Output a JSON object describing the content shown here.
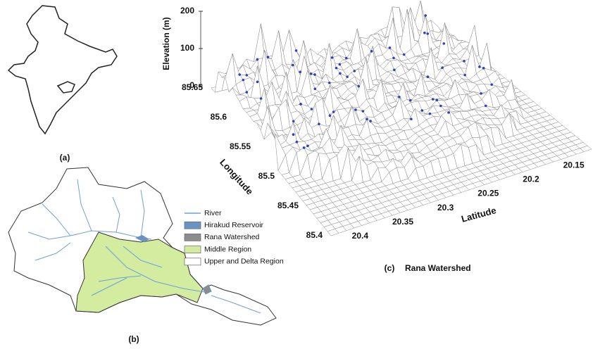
{
  "panels": {
    "a": {
      "label": "(a)"
    },
    "b": {
      "label": "(b)",
      "legend": [
        {
          "name": "River",
          "color": "#6f9fd8"
        },
        {
          "name": "Hirakud Reservoir",
          "color": "#6a93c4"
        },
        {
          "name": "Rana Watershed",
          "color": "#8c8c8c"
        },
        {
          "name": "Middle Region",
          "color": "#d3eca0"
        },
        {
          "name": "Upper and Delta Region",
          "color": "#ffffff"
        }
      ]
    },
    "c": {
      "label": "(c)",
      "title": "Rana Watershed",
      "z_axis": {
        "title": "Elevation (m)",
        "ticks": [
          0,
          100,
          200
        ]
      },
      "x_axis": {
        "title": "Longitude",
        "ticks": [
          85.65,
          85.6,
          85.55,
          85.5,
          85.45,
          85.4
        ]
      },
      "y_axis": {
        "title": "Latitude",
        "ticks": [
          20.4,
          20.35,
          20.3,
          20.25,
          20.2,
          20.15
        ]
      }
    }
  }
}
